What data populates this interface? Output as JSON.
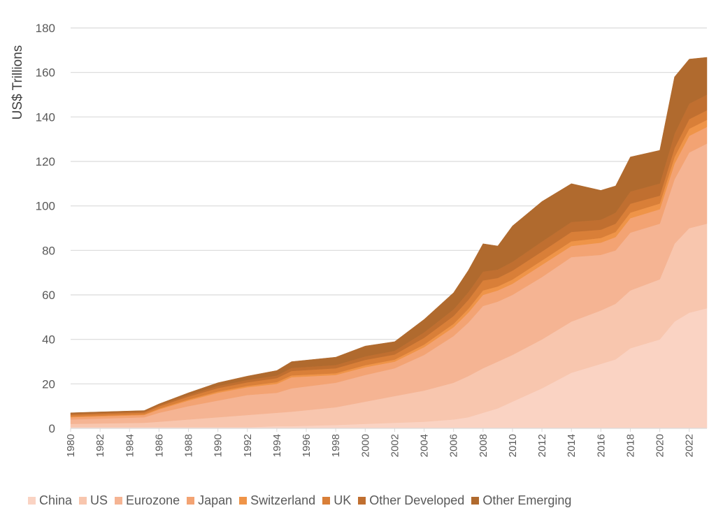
{
  "chart_data": {
    "type": "area",
    "stacked": true,
    "title": "",
    "xlabel": "",
    "ylabel": "US$ Trillions",
    "ylim": [
      0,
      180
    ],
    "yticks": [
      0,
      20,
      40,
      60,
      80,
      100,
      120,
      140,
      160,
      180
    ],
    "xlim": [
      1980,
      2023.2
    ],
    "xticks": [
      "1980",
      "1982",
      "1984",
      "1986",
      "1988",
      "1990",
      "1992",
      "1994",
      "1996",
      "1998",
      "2000",
      "2002",
      "2004",
      "2006",
      "2008",
      "2010",
      "2012",
      "2014",
      "2016",
      "2018",
      "2020",
      "2022"
    ],
    "grid": true,
    "legend_position": "bottom",
    "x": [
      1980,
      1985,
      1986,
      1988,
      1990,
      1992,
      1994,
      1995,
      1998,
      2000,
      2002,
      2004,
      2006,
      2007,
      2008,
      2009,
      2010,
      2012,
      2014,
      2016,
      2017,
      2018,
      2020,
      2021,
      2022,
      2023.2
    ],
    "series": [
      {
        "name": "China",
        "color": "#fad3c3",
        "values": [
          0.5,
          0.5,
          0.5,
          0.5,
          0.5,
          0.5,
          1.0,
          1.0,
          1.5,
          2.0,
          2.5,
          3.0,
          4.0,
          5.0,
          7.0,
          9.0,
          12.0,
          18.0,
          25.0,
          29.0,
          31.0,
          36.0,
          40.0,
          48.0,
          52.0,
          54.0
        ]
      },
      {
        "name": "US",
        "color": "#f8c6ae",
        "values": [
          1.5,
          2.0,
          2.5,
          3.5,
          4.5,
          5.5,
          6.0,
          6.5,
          8.0,
          10.0,
          12.0,
          14.0,
          16.5,
          18.5,
          20.0,
          21.0,
          21.0,
          22.0,
          23.0,
          24.0,
          25.0,
          26.0,
          27.0,
          35.0,
          38.0,
          38.0
        ]
      },
      {
        "name": "Eurozone",
        "color": "#f5b493",
        "values": [
          2.0,
          2.5,
          4.0,
          6.0,
          7.5,
          9.0,
          9.0,
          10.5,
          11.0,
          12.0,
          12.5,
          16.0,
          21.0,
          24.0,
          28.0,
          27.0,
          27.0,
          28.0,
          29.0,
          25.0,
          24.0,
          26.0,
          25.0,
          29.0,
          34.0,
          36.0
        ]
      },
      {
        "name": "Japan",
        "color": "#f3a373",
        "values": [
          1.0,
          1.0,
          1.5,
          2.5,
          3.5,
          3.5,
          4.0,
          5.0,
          3.5,
          3.5,
          3.0,
          3.5,
          4.0,
          4.5,
          5.0,
          5.0,
          5.0,
          5.5,
          5.0,
          5.5,
          6.0,
          6.5,
          6.5,
          7.0,
          7.5,
          7.5
        ]
      },
      {
        "name": "Switzerland",
        "color": "#ef9448",
        "values": [
          0.3,
          0.3,
          0.4,
          0.5,
          0.6,
          0.6,
          0.8,
          0.8,
          0.8,
          0.9,
          0.9,
          1.2,
          1.5,
          1.7,
          2.0,
          1.8,
          1.9,
          2.0,
          2.1,
          2.1,
          2.3,
          2.5,
          2.6,
          3.0,
          3.2,
          3.2
        ]
      },
      {
        "name": "UK",
        "color": "#d97f38",
        "values": [
          0.8,
          0.8,
          1.0,
          1.3,
          1.5,
          1.6,
          1.8,
          2.0,
          2.2,
          2.4,
          2.3,
          3.0,
          3.5,
          4.0,
          4.5,
          3.8,
          4.0,
          4.0,
          4.2,
          3.7,
          3.7,
          4.0,
          3.5,
          4.0,
          4.3,
          4.3
        ]
      },
      {
        "name": "Other Developed",
        "color": "#c06f30",
        "values": [
          0.5,
          0.5,
          0.6,
          0.8,
          1.0,
          1.1,
          1.2,
          1.4,
          1.5,
          1.6,
          1.7,
          2.5,
          3.0,
          3.5,
          4.0,
          3.8,
          4.0,
          4.5,
          4.5,
          4.5,
          5.0,
          5.5,
          5.5,
          6.5,
          7.0,
          7.0
        ]
      },
      {
        "name": "Other Emerging",
        "color": "#b06a2e",
        "values": [
          0.4,
          0.4,
          0.5,
          0.9,
          1.4,
          1.7,
          2.2,
          2.8,
          3.5,
          4.6,
          4.1,
          5.8,
          7.5,
          9.8,
          12.5,
          10.6,
          16.1,
          18.0,
          17.2,
          13.2,
          12.0,
          15.5,
          14.9,
          25.5,
          20.0,
          16.8
        ]
      }
    ]
  }
}
